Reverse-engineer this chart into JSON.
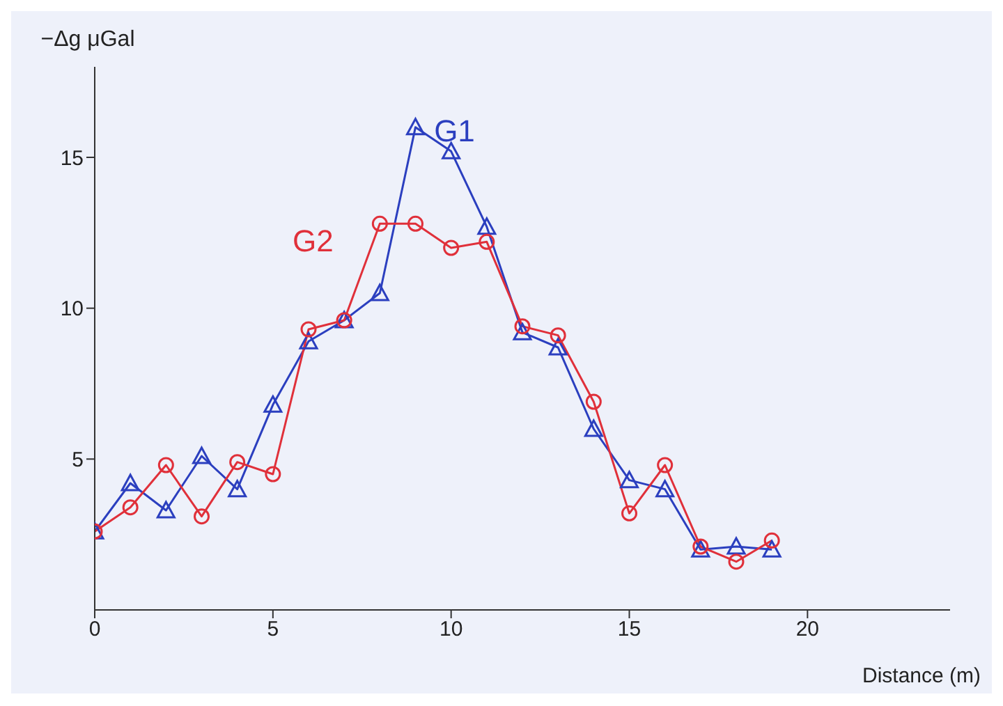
{
  "chart_data": {
    "type": "line",
    "xlabel": "Distance (m)",
    "ylabel": "−Δg μGal",
    "x": [
      0,
      1,
      2,
      3,
      4,
      5,
      6,
      7,
      8,
      9,
      10,
      11,
      12,
      13,
      14,
      15,
      16,
      17,
      18,
      19
    ],
    "series": [
      {
        "name": "G1",
        "color": "#2b3fbf",
        "marker": "triangle",
        "values": [
          2.6,
          4.2,
          3.3,
          5.1,
          4.0,
          6.8,
          8.9,
          9.6,
          10.5,
          16.0,
          15.2,
          12.7,
          9.2,
          8.7,
          6.0,
          4.3,
          4.0,
          2.0,
          2.1,
          2.0
        ]
      },
      {
        "name": "G2",
        "color": "#e0303a",
        "marker": "circle",
        "values": [
          2.6,
          3.4,
          4.8,
          3.1,
          4.9,
          4.5,
          9.3,
          9.6,
          12.8,
          12.8,
          12.0,
          12.2,
          9.4,
          9.1,
          6.9,
          3.2,
          4.8,
          2.1,
          1.6,
          2.3
        ]
      }
    ],
    "xlim": [
      0,
      24
    ],
    "ylim": [
      0,
      18
    ],
    "xticks": [
      0,
      5,
      10,
      15,
      20
    ],
    "yticks": [
      5,
      10,
      15
    ]
  }
}
